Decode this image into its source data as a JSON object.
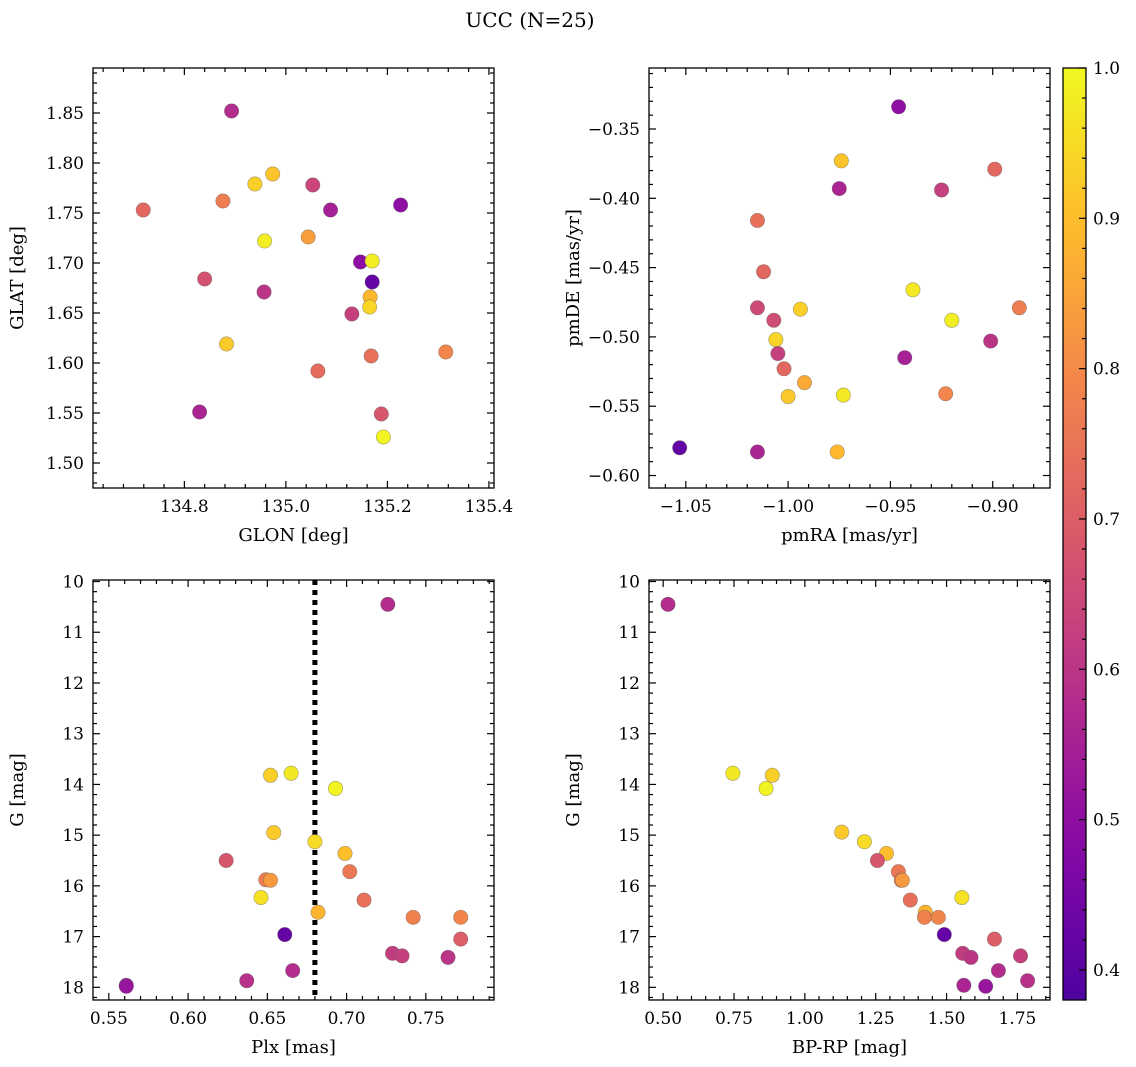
{
  "title": "UCC (N=25)",
  "colorbar": {
    "range": [
      0.38,
      1.0
    ],
    "ticks": [
      0.4,
      0.5,
      0.6,
      0.7,
      0.8,
      0.9,
      1.0
    ],
    "tick_labels": [
      "0.4",
      "0.5",
      "0.6",
      "0.7",
      "0.8",
      "0.9",
      "1.0"
    ],
    "colormap": "plasma"
  },
  "chart_data": [
    {
      "id": "glon-glat",
      "type": "scatter",
      "xlabel": "GLON [deg]",
      "ylabel": "GLAT [deg]",
      "xlim": [
        134.62,
        135.41
      ],
      "ylim": [
        1.475,
        1.895
      ],
      "y_inverted": false,
      "xticks": [
        134.8,
        135.0,
        135.2,
        135.4
      ],
      "xtick_labels": [
        "134.8",
        "135.0",
        "135.2",
        "135.4"
      ],
      "yticks": [
        1.5,
        1.55,
        1.6,
        1.65,
        1.7,
        1.75,
        1.8,
        1.85
      ],
      "ytick_labels": [
        "1.50",
        "1.55",
        "1.60",
        "1.65",
        "1.70",
        "1.75",
        "1.80",
        "1.85"
      ],
      "points": [
        {
          "x": 134.893,
          "y": 1.852,
          "p": 0.58
        },
        {
          "x": 134.719,
          "y": 1.753,
          "p": 0.72
        },
        {
          "x": 134.876,
          "y": 1.762,
          "p": 0.77
        },
        {
          "x": 134.939,
          "y": 1.779,
          "p": 0.93
        },
        {
          "x": 134.974,
          "y": 1.789,
          "p": 0.91
        },
        {
          "x": 135.053,
          "y": 1.778,
          "p": 0.64
        },
        {
          "x": 135.088,
          "y": 1.753,
          "p": 0.55
        },
        {
          "x": 135.226,
          "y": 1.758,
          "p": 0.5
        },
        {
          "x": 134.958,
          "y": 1.722,
          "p": 0.98
        },
        {
          "x": 135.044,
          "y": 1.726,
          "p": 0.84
        },
        {
          "x": 134.84,
          "y": 1.684,
          "p": 0.67
        },
        {
          "x": 135.147,
          "y": 1.701,
          "p": 0.5
        },
        {
          "x": 135.17,
          "y": 1.702,
          "p": 0.98
        },
        {
          "x": 135.17,
          "y": 1.681,
          "p": 0.42
        },
        {
          "x": 134.957,
          "y": 1.671,
          "p": 0.6
        },
        {
          "x": 135.166,
          "y": 1.666,
          "p": 0.89
        },
        {
          "x": 135.165,
          "y": 1.656,
          "p": 0.94
        },
        {
          "x": 135.13,
          "y": 1.649,
          "p": 0.63
        },
        {
          "x": 134.883,
          "y": 1.619,
          "p": 0.92
        },
        {
          "x": 135.168,
          "y": 1.607,
          "p": 0.74
        },
        {
          "x": 135.315,
          "y": 1.611,
          "p": 0.79
        },
        {
          "x": 135.063,
          "y": 1.592,
          "p": 0.73
        },
        {
          "x": 134.83,
          "y": 1.551,
          "p": 0.56
        },
        {
          "x": 135.188,
          "y": 1.549,
          "p": 0.68
        },
        {
          "x": 135.192,
          "y": 1.526,
          "p": 0.99
        }
      ]
    },
    {
      "id": "pmra-pmde",
      "type": "scatter",
      "xlabel": "pmRA [mas/yr]",
      "ylabel": "pmDE [mas/yr]",
      "xlim": [
        -1.068,
        -0.872
      ],
      "ylim": [
        -0.609,
        -0.306
      ],
      "y_inverted": false,
      "xticks": [
        -1.05,
        -1.0,
        -0.95,
        -0.9
      ],
      "xtick_labels": [
        "−1.05",
        "−1.00",
        "−0.95",
        "−0.90"
      ],
      "yticks": [
        -0.6,
        -0.55,
        -0.5,
        -0.45,
        -0.4,
        -0.35
      ],
      "ytick_labels": [
        "−0.60",
        "−0.55",
        "−0.50",
        "−0.45",
        "−0.40",
        "−0.35"
      ],
      "points": [
        {
          "x": -0.946,
          "y": -0.334,
          "p": 0.5
        },
        {
          "x": -0.974,
          "y": -0.373,
          "p": 0.91
        },
        {
          "x": -0.899,
          "y": -0.379,
          "p": 0.72
        },
        {
          "x": -0.975,
          "y": -0.393,
          "p": 0.56
        },
        {
          "x": -0.925,
          "y": -0.394,
          "p": 0.63
        },
        {
          "x": -1.015,
          "y": -0.416,
          "p": 0.74
        },
        {
          "x": -1.012,
          "y": -0.453,
          "p": 0.72
        },
        {
          "x": -0.939,
          "y": -0.466,
          "p": 0.97
        },
        {
          "x": -1.015,
          "y": -0.479,
          "p": 0.65
        },
        {
          "x": -0.994,
          "y": -0.48,
          "p": 0.93
        },
        {
          "x": -0.887,
          "y": -0.479,
          "p": 0.77
        },
        {
          "x": -0.92,
          "y": -0.488,
          "p": 0.98
        },
        {
          "x": -1.007,
          "y": -0.488,
          "p": 0.66
        },
        {
          "x": -0.901,
          "y": -0.503,
          "p": 0.6
        },
        {
          "x": -1.006,
          "y": -0.502,
          "p": 0.94
        },
        {
          "x": -1.005,
          "y": -0.512,
          "p": 0.63
        },
        {
          "x": -0.943,
          "y": -0.515,
          "p": 0.55
        },
        {
          "x": -1.002,
          "y": -0.523,
          "p": 0.72
        },
        {
          "x": -0.992,
          "y": -0.533,
          "p": 0.86
        },
        {
          "x": -0.923,
          "y": -0.541,
          "p": 0.79
        },
        {
          "x": -1.0,
          "y": -0.543,
          "p": 0.92
        },
        {
          "x": -0.973,
          "y": -0.542,
          "p": 0.97
        },
        {
          "x": -1.053,
          "y": -0.58,
          "p": 0.42
        },
        {
          "x": -1.015,
          "y": -0.583,
          "p": 0.56
        },
        {
          "x": -0.976,
          "y": -0.583,
          "p": 0.89
        }
      ]
    },
    {
      "id": "plx-g",
      "type": "scatter",
      "xlabel": "Plx [mas]",
      "ylabel": "G [mag]",
      "xlim": [
        0.54,
        0.793
      ],
      "ylim": [
        9.97,
        18.25
      ],
      "y_inverted": true,
      "xticks": [
        0.55,
        0.6,
        0.65,
        0.7,
        0.75
      ],
      "xtick_labels": [
        "0.55",
        "0.60",
        "0.65",
        "0.70",
        "0.75"
      ],
      "yticks": [
        10,
        11,
        12,
        13,
        14,
        15,
        16,
        17,
        18
      ],
      "ytick_labels": [
        "10",
        "11",
        "12",
        "13",
        "14",
        "15",
        "16",
        "17",
        "18"
      ],
      "vline": 0.68,
      "points": [
        {
          "x": 0.726,
          "y": 10.45,
          "p": 0.58
        },
        {
          "x": 0.652,
          "y": 13.82,
          "p": 0.93
        },
        {
          "x": 0.665,
          "y": 13.78,
          "p": 0.97
        },
        {
          "x": 0.693,
          "y": 14.08,
          "p": 0.99
        },
        {
          "x": 0.654,
          "y": 14.95,
          "p": 0.92
        },
        {
          "x": 0.68,
          "y": 15.13,
          "p": 0.95
        },
        {
          "x": 0.624,
          "y": 15.5,
          "p": 0.68
        },
        {
          "x": 0.699,
          "y": 15.36,
          "p": 0.9
        },
        {
          "x": 0.702,
          "y": 15.72,
          "p": 0.76
        },
        {
          "x": 0.649,
          "y": 15.88,
          "p": 0.77
        },
        {
          "x": 0.652,
          "y": 15.89,
          "p": 0.83
        },
        {
          "x": 0.646,
          "y": 16.23,
          "p": 0.96
        },
        {
          "x": 0.711,
          "y": 16.28,
          "p": 0.74
        },
        {
          "x": 0.682,
          "y": 16.52,
          "p": 0.88
        },
        {
          "x": 0.742,
          "y": 16.62,
          "p": 0.78
        },
        {
          "x": 0.772,
          "y": 16.62,
          "p": 0.79
        },
        {
          "x": 0.661,
          "y": 16.96,
          "p": 0.42
        },
        {
          "x": 0.772,
          "y": 17.05,
          "p": 0.7
        },
        {
          "x": 0.729,
          "y": 17.33,
          "p": 0.62
        },
        {
          "x": 0.735,
          "y": 17.38,
          "p": 0.63
        },
        {
          "x": 0.764,
          "y": 17.41,
          "p": 0.6
        },
        {
          "x": 0.666,
          "y": 17.67,
          "p": 0.58
        },
        {
          "x": 0.637,
          "y": 17.87,
          "p": 0.59
        },
        {
          "x": 0.561,
          "y": 17.96,
          "p": 0.56
        },
        {
          "x": 0.561,
          "y": 17.98,
          "p": 0.52
        }
      ]
    },
    {
      "id": "bprp-g",
      "type": "scatter",
      "xlabel": "BP-RP [mag]",
      "ylabel": "G [mag]",
      "xlim": [
        0.45,
        1.865
      ],
      "ylim": [
        9.97,
        18.25
      ],
      "y_inverted": true,
      "xticks": [
        0.5,
        0.75,
        1.0,
        1.25,
        1.5,
        1.75
      ],
      "xtick_labels": [
        "0.50",
        "0.75",
        "1.00",
        "1.25",
        "1.50",
        "1.75"
      ],
      "yticks": [
        10,
        11,
        12,
        13,
        14,
        15,
        16,
        17,
        18
      ],
      "ytick_labels": [
        "10",
        "11",
        "12",
        "13",
        "14",
        "15",
        "16",
        "17",
        "18"
      ],
      "points": [
        {
          "x": 0.517,
          "y": 10.45,
          "p": 0.58
        },
        {
          "x": 0.746,
          "y": 13.78,
          "p": 0.97
        },
        {
          "x": 0.885,
          "y": 13.82,
          "p": 0.93
        },
        {
          "x": 0.863,
          "y": 14.08,
          "p": 0.99
        },
        {
          "x": 1.13,
          "y": 14.94,
          "p": 0.92
        },
        {
          "x": 1.21,
          "y": 15.13,
          "p": 0.95
        },
        {
          "x": 1.288,
          "y": 15.36,
          "p": 0.9
        },
        {
          "x": 1.256,
          "y": 15.5,
          "p": 0.68
        },
        {
          "x": 1.33,
          "y": 15.72,
          "p": 0.76
        },
        {
          "x": 1.34,
          "y": 15.89,
          "p": 0.77
        },
        {
          "x": 1.344,
          "y": 15.89,
          "p": 0.83
        },
        {
          "x": 1.554,
          "y": 16.23,
          "p": 0.96
        },
        {
          "x": 1.372,
          "y": 16.28,
          "p": 0.74
        },
        {
          "x": 1.425,
          "y": 16.52,
          "p": 0.88
        },
        {
          "x": 1.422,
          "y": 16.62,
          "p": 0.78
        },
        {
          "x": 1.471,
          "y": 16.62,
          "p": 0.79
        },
        {
          "x": 1.492,
          "y": 16.96,
          "p": 0.42
        },
        {
          "x": 1.669,
          "y": 17.05,
          "p": 0.7
        },
        {
          "x": 1.557,
          "y": 17.33,
          "p": 0.62
        },
        {
          "x": 1.761,
          "y": 17.38,
          "p": 0.63
        },
        {
          "x": 1.586,
          "y": 17.41,
          "p": 0.6
        },
        {
          "x": 1.683,
          "y": 17.67,
          "p": 0.58
        },
        {
          "x": 1.786,
          "y": 17.87,
          "p": 0.59
        },
        {
          "x": 1.561,
          "y": 17.96,
          "p": 0.56
        },
        {
          "x": 1.638,
          "y": 17.98,
          "p": 0.52
        }
      ]
    }
  ]
}
